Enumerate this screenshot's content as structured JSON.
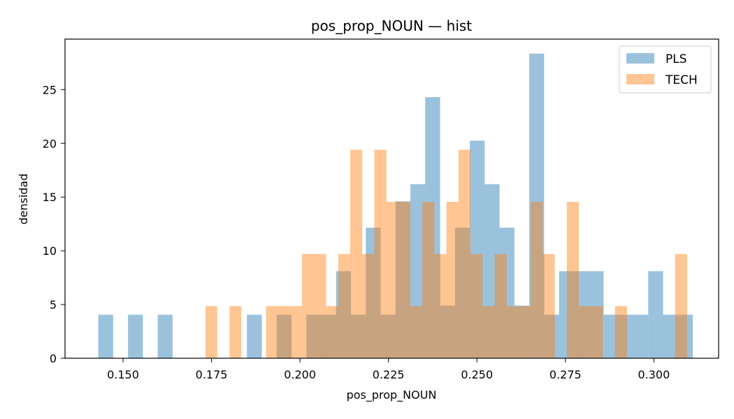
{
  "chart_data": {
    "type": "histogram",
    "title": "pos_prop_NOUN — hist",
    "xlabel": "pos_prop_NOUN",
    "ylabel": "densidad",
    "xlim": [
      0.1336,
      0.3183
    ],
    "ylim": [
      0,
      29.7
    ],
    "x_ticks": [
      0.15,
      0.175,
      0.2,
      0.225,
      0.25,
      0.275,
      0.3
    ],
    "x_tick_labels": [
      "0.150",
      "0.175",
      "0.200",
      "0.225",
      "0.250",
      "0.275",
      "0.300"
    ],
    "y_ticks": [
      0,
      5,
      10,
      15,
      20,
      25
    ],
    "y_tick_labels": [
      "0",
      "5",
      "10",
      "15",
      "20",
      "25"
    ],
    "legend": {
      "position": "upper right"
    },
    "series": [
      {
        "name": "PLS",
        "color": "#1f77b4",
        "alpha": 0.45,
        "bins": [
          [
            0.143,
            0.1472,
            4.05
          ],
          [
            0.1514,
            0.1556,
            4.05
          ],
          [
            0.1598,
            0.164,
            4.05
          ],
          [
            0.185,
            0.1892,
            4.05
          ],
          [
            0.1934,
            0.1976,
            4.05
          ],
          [
            0.2018,
            0.206,
            4.05
          ],
          [
            0.206,
            0.2102,
            4.05
          ],
          [
            0.2102,
            0.2144,
            8.1
          ],
          [
            0.2144,
            0.2186,
            4.05
          ],
          [
            0.2186,
            0.2228,
            12.15
          ],
          [
            0.2228,
            0.227,
            4.05
          ],
          [
            0.227,
            0.2312,
            14.6
          ],
          [
            0.2312,
            0.2354,
            16.2
          ],
          [
            0.2354,
            0.2396,
            24.3
          ],
          [
            0.2396,
            0.2438,
            4.9
          ],
          [
            0.2438,
            0.248,
            12.15
          ],
          [
            0.248,
            0.2522,
            20.25
          ],
          [
            0.2522,
            0.2564,
            16.2
          ],
          [
            0.2564,
            0.2606,
            12.15
          ],
          [
            0.2606,
            0.2648,
            4.9
          ],
          [
            0.2648,
            0.269,
            28.35
          ],
          [
            0.269,
            0.2732,
            4.05
          ],
          [
            0.2732,
            0.2774,
            8.1
          ],
          [
            0.2774,
            0.2816,
            8.1
          ],
          [
            0.2816,
            0.2858,
            8.1
          ],
          [
            0.2858,
            0.29,
            4.05
          ],
          [
            0.29,
            0.2942,
            4.05
          ],
          [
            0.2942,
            0.2984,
            4.05
          ],
          [
            0.2984,
            0.3026,
            8.1
          ],
          [
            0.3026,
            0.3068,
            4.05
          ],
          [
            0.3068,
            0.311,
            4.05
          ]
        ]
      },
      {
        "name": "TECH",
        "color": "#ff7f0e",
        "alpha": 0.45,
        "bins": [
          [
            0.1733,
            0.1766,
            4.85
          ],
          [
            0.1801,
            0.1834,
            4.85
          ],
          [
            0.1904,
            0.1938,
            4.85
          ],
          [
            0.1938,
            0.1972,
            4.85
          ],
          [
            0.1972,
            0.2006,
            4.85
          ],
          [
            0.2006,
            0.204,
            9.7
          ],
          [
            0.204,
            0.2074,
            9.7
          ],
          [
            0.2074,
            0.2108,
            4.85
          ],
          [
            0.2108,
            0.2142,
            9.7
          ],
          [
            0.2142,
            0.2176,
            19.4
          ],
          [
            0.2176,
            0.221,
            9.7
          ],
          [
            0.221,
            0.2244,
            19.4
          ],
          [
            0.2244,
            0.2278,
            14.55
          ],
          [
            0.2278,
            0.2312,
            14.55
          ],
          [
            0.2312,
            0.2346,
            4.85
          ],
          [
            0.2346,
            0.238,
            14.55
          ],
          [
            0.238,
            0.2414,
            9.7
          ],
          [
            0.2414,
            0.2448,
            14.55
          ],
          [
            0.2448,
            0.2482,
            19.4
          ],
          [
            0.2482,
            0.2516,
            9.7
          ],
          [
            0.2516,
            0.255,
            4.85
          ],
          [
            0.255,
            0.2584,
            9.7
          ],
          [
            0.2584,
            0.2618,
            4.85
          ],
          [
            0.2618,
            0.2652,
            4.85
          ],
          [
            0.2652,
            0.2686,
            14.55
          ],
          [
            0.2686,
            0.272,
            9.7
          ],
          [
            0.2754,
            0.2788,
            14.55
          ],
          [
            0.2788,
            0.2822,
            4.85
          ],
          [
            0.2822,
            0.2856,
            4.85
          ],
          [
            0.289,
            0.2924,
            4.85
          ],
          [
            0.306,
            0.3094,
            9.7
          ]
        ]
      }
    ]
  }
}
